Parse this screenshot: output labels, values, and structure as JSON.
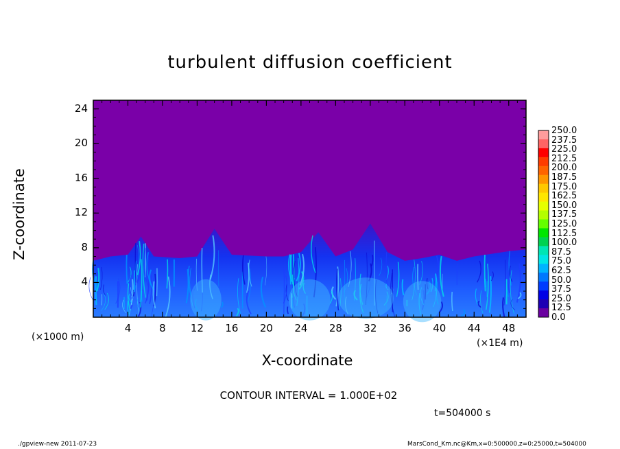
{
  "title": "turbulent diffusion coefficient",
  "ylabel": "Z-coordinate",
  "xlabel": "X-coordinate",
  "x_unit_left": "(×1000 m)",
  "x_unit_right": "(×1E4 m)",
  "contour_text": "CONTOUR INTERVAL = 1.000E+02",
  "time_text": "t=504000 s",
  "footer_left": "./gpview-new   2011-07-23",
  "footer_right": "MarsCond_Km.nc@Km,x=0:500000,z=0:25000,t=504000",
  "chart_data": {
    "type": "heatmap",
    "title": "turbulent diffusion coefficient",
    "xlabel": "X-coordinate",
    "ylabel": "Z-coordinate",
    "x_unit": "×1E4 m",
    "y_unit": "×1000 m",
    "xlim": [
      0,
      50
    ],
    "ylim": [
      0,
      25
    ],
    "x_ticks": [
      4,
      8,
      12,
      16,
      20,
      24,
      28,
      32,
      36,
      40,
      44,
      48
    ],
    "y_ticks": [
      4,
      8,
      12,
      16,
      20,
      24
    ],
    "colorbar_levels": [
      "250.0",
      "237.5",
      "225.0",
      "212.5",
      "200.0",
      "187.5",
      "175.0",
      "162.5",
      "150.0",
      "137.5",
      "125.0",
      "112.5",
      "100.0",
      "87.5",
      "75.0",
      "62.5",
      "50.0",
      "37.5",
      "25.0",
      "12.5",
      "0.0"
    ],
    "colorbar_colors": [
      "#ff9c9c",
      "#ff6464",
      "#ff0000",
      "#ff3c00",
      "#ff6400",
      "#ff9600",
      "#ffc800",
      "#ffe600",
      "#e6ff00",
      "#b4ff00",
      "#64ff00",
      "#00e600",
      "#00d250",
      "#00e6b4",
      "#00e6e6",
      "#00b4ff",
      "#0078ff",
      "#003cff",
      "#0000e6",
      "#1e00b4",
      "#6a00a0"
    ],
    "background_value_color": "#7a00a8",
    "turbulent_layer_top_approx": [
      [
        0,
        6.5
      ],
      [
        2,
        7.0
      ],
      [
        4,
        7.2
      ],
      [
        5.5,
        9.3
      ],
      [
        7,
        7.0
      ],
      [
        10,
        6.8
      ],
      [
        12,
        7.0
      ],
      [
        14,
        10.2
      ],
      [
        16,
        7.2
      ],
      [
        20,
        7.0
      ],
      [
        22,
        7.0
      ],
      [
        24,
        7.5
      ],
      [
        26,
        9.8
      ],
      [
        28,
        7.0
      ],
      [
        30,
        7.8
      ],
      [
        32,
        10.8
      ],
      [
        34,
        7.5
      ],
      [
        36,
        6.5
      ],
      [
        38,
        6.8
      ],
      [
        40,
        7.2
      ],
      [
        42,
        6.5
      ],
      [
        44,
        7.0
      ],
      [
        46,
        7.3
      ],
      [
        48,
        7.6
      ],
      [
        50,
        7.8
      ]
    ],
    "grid": false,
    "legend": "right colorbar"
  }
}
